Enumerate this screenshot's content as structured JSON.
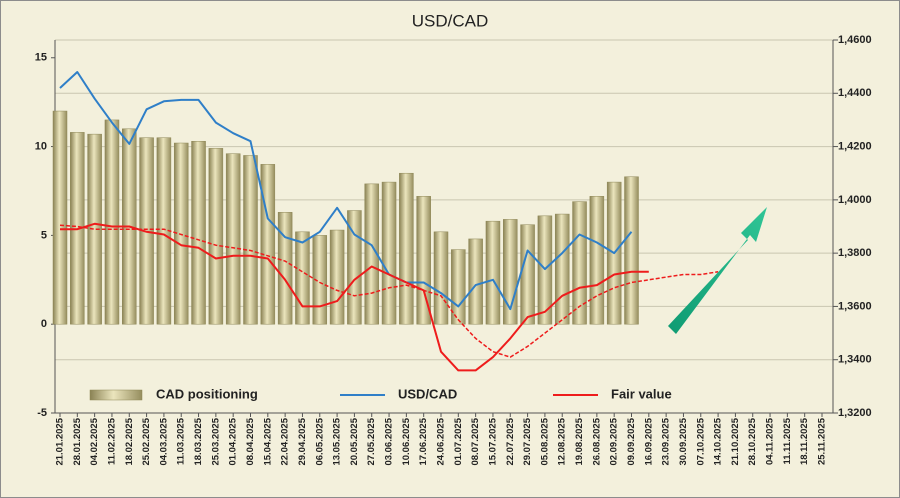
{
  "chart_data": {
    "type": "bar",
    "title": "USD/CAD",
    "categories": [
      "21.01.2025",
      "28.01.2025",
      "04.02.2025",
      "11.02.2025",
      "18.02.2025",
      "25.02.2025",
      "04.03.2025",
      "11.03.2025",
      "18.03.2025",
      "25.03.2025",
      "01.04.2025",
      "08.04.2025",
      "15.04.2025",
      "22.04.2025",
      "29.04.2025",
      "06.05.2025",
      "13.05.2025",
      "20.05.2025",
      "27.05.2025",
      "03.06.2025",
      "10.06.2025",
      "17.06.2025",
      "24.06.2025",
      "01.07.2025",
      "08.07.2025",
      "15.07.2025",
      "22.07.2025",
      "29.07.2025",
      "05.08.2025",
      "12.08.2025",
      "19.08.2025",
      "26.08.2025",
      "02.09.2025",
      "09.09.2025",
      "16.09.2025",
      "23.09.2025",
      "30.09.2025",
      "07.10.2025",
      "14.10.2025",
      "21.10.2025",
      "28.10.2025",
      "04.11.2025",
      "11.11.2025",
      "18.11.2025",
      "25.11.2025"
    ],
    "series": [
      {
        "name": "CAD positioning",
        "type": "bar",
        "color": "#b3ab78",
        "values": [
          12.0,
          10.8,
          10.7,
          11.5,
          11.0,
          10.5,
          10.5,
          10.2,
          10.3,
          9.9,
          9.6,
          9.5,
          9.0,
          6.3,
          5.2,
          5.0,
          5.3,
          6.4,
          7.9,
          8.0,
          8.5,
          7.2,
          5.2,
          4.2,
          4.8,
          5.8,
          5.9,
          5.6,
          6.1,
          6.2,
          6.9,
          7.2,
          8.0,
          8.3,
          null,
          null,
          null,
          null,
          null,
          null,
          null,
          null,
          null,
          null,
          null
        ]
      },
      {
        "name": "USD/CAD",
        "type": "line",
        "axis": "y2",
        "color": "#2f7fc8",
        "values": [
          1.442,
          1.448,
          1.438,
          1.429,
          1.421,
          1.434,
          1.437,
          1.4375,
          1.4375,
          1.429,
          1.425,
          1.422,
          1.393,
          1.386,
          1.384,
          1.388,
          1.397,
          1.387,
          1.383,
          1.372,
          1.369,
          1.369,
          1.365,
          1.36,
          1.368,
          1.37,
          1.359,
          1.381,
          1.374,
          1.38,
          1.387,
          1.384,
          1.38,
          1.388,
          null,
          null,
          null,
          null,
          null,
          null,
          null,
          null,
          null,
          null,
          null
        ]
      },
      {
        "name": "Fair value",
        "type": "line",
        "axis": "y2",
        "color": "#ee1c1c",
        "values": [
          1.389,
          1.389,
          1.391,
          1.39,
          1.39,
          1.388,
          1.387,
          1.383,
          1.382,
          1.378,
          1.379,
          1.379,
          1.378,
          1.37,
          1.36,
          1.36,
          1.362,
          1.37,
          1.375,
          1.372,
          1.369,
          1.366,
          1.343,
          1.336,
          1.336,
          1.341,
          1.348,
          1.356,
          1.358,
          1.364,
          1.367,
          1.368,
          1.372,
          1.373,
          1.373,
          null,
          null,
          null,
          null,
          null,
          null,
          null,
          null,
          null,
          null
        ]
      },
      {
        "type": "line",
        "axis": "y2",
        "color": "#ee1c1c",
        "dashed": true,
        "values": [
          1.3905,
          1.39,
          1.389,
          1.389,
          1.389,
          1.389,
          1.389,
          1.387,
          1.385,
          1.383,
          1.382,
          1.381,
          1.379,
          1.377,
          1.373,
          1.369,
          1.366,
          1.364,
          1.365,
          1.367,
          1.368,
          1.366,
          1.364,
          1.355,
          1.348,
          1.343,
          1.341,
          1.345,
          1.35,
          1.355,
          1.36,
          1.364,
          1.367,
          1.369,
          1.37,
          1.371,
          1.372,
          1.372,
          1.373,
          null,
          null,
          null,
          null,
          null,
          null
        ]
      }
    ],
    "ylim": [
      -5,
      16
    ],
    "yticks": [
      -5,
      0,
      5,
      10,
      15
    ],
    "y2lim": [
      1.32,
      1.46
    ],
    "y2ticks": [
      {
        "value": 1.32,
        "label": "1,3200"
      },
      {
        "value": 1.34,
        "label": "1,3400"
      },
      {
        "value": 1.36,
        "label": "1,3600"
      },
      {
        "value": 1.38,
        "label": "1,3800"
      },
      {
        "value": 1.4,
        "label": "1,4000"
      },
      {
        "value": 1.42,
        "label": "1,4200"
      },
      {
        "value": 1.44,
        "label": "1,4400"
      },
      {
        "value": 1.46,
        "label": "1,4600"
      }
    ],
    "grid": true,
    "legend": "bottom"
  }
}
